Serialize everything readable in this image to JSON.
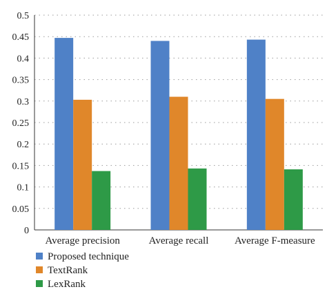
{
  "chart_data": {
    "type": "bar",
    "title": "",
    "xlabel": "",
    "ylabel": "",
    "categories": [
      "Average precision",
      "Average recall",
      "Average F-measure"
    ],
    "series": [
      {
        "name": "Proposed technique",
        "color": "#4f81c7",
        "values": [
          0.447,
          0.44,
          0.443
        ]
      },
      {
        "name": "TextRank",
        "color": "#e0872a",
        "values": [
          0.303,
          0.31,
          0.305
        ]
      },
      {
        "name": "LexRank",
        "color": "#2e9a47",
        "values": [
          0.137,
          0.143,
          0.141
        ]
      }
    ],
    "ylim": [
      0,
      0.5
    ],
    "yticks": [
      0,
      0.05,
      0.1,
      0.15,
      0.2,
      0.25,
      0.3,
      0.35,
      0.4,
      0.45,
      0.5
    ],
    "ytick_labels": [
      "0",
      "0.05",
      "0.1",
      "0.15",
      "0.2",
      "0.25",
      "0.3",
      "0.35",
      "0.4",
      "0.45",
      "0.5"
    ],
    "grid": "horizontal-dotted",
    "legend_position": "bottom-left"
  }
}
